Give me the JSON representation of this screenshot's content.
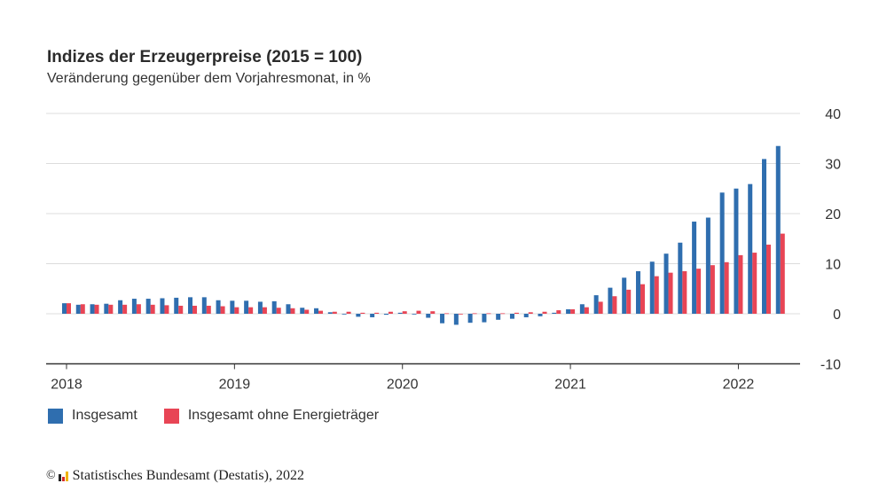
{
  "header": {
    "title": "Indizes der Erzeugerpreise (2015 = 100)",
    "subtitle": "Veränderung gegenüber dem Vorjahresmonat, in %"
  },
  "legend": [
    {
      "label": "Insgesamt",
      "color": "#2f6eaf"
    },
    {
      "label": "Insgesamt ohne Energieträger",
      "color": "#e84555"
    }
  ],
  "source": {
    "copyright_symbol": "©",
    "text": "Statistisches Bundesamt (Destatis), 2022",
    "logo_colors": [
      "#222222",
      "#d62b2b",
      "#f0b400"
    ]
  },
  "chart_data": {
    "type": "bar",
    "title": "Indizes der Erzeugerpreise (2015 = 100)",
    "subtitle": "Veränderung gegenüber dem Vorjahresmonat, in %",
    "xlabel": "",
    "ylabel": "",
    "ylim": [
      -10,
      40
    ],
    "yticks": [
      40,
      30,
      20,
      10,
      0,
      -10
    ],
    "y_axis_side": "right",
    "grid": true,
    "legend_position": "bottom-left",
    "x_start": "2018-01",
    "x_tick_labels": [
      "2018",
      "2019",
      "2020",
      "2021",
      "2022"
    ],
    "categories": [
      "2018-01",
      "2018-02",
      "2018-03",
      "2018-04",
      "2018-05",
      "2018-06",
      "2018-07",
      "2018-08",
      "2018-09",
      "2018-10",
      "2018-11",
      "2018-12",
      "2019-01",
      "2019-02",
      "2019-03",
      "2019-04",
      "2019-05",
      "2019-06",
      "2019-07",
      "2019-08",
      "2019-09",
      "2019-10",
      "2019-11",
      "2019-12",
      "2020-01",
      "2020-02",
      "2020-03",
      "2020-04",
      "2020-05",
      "2020-06",
      "2020-07",
      "2020-08",
      "2020-09",
      "2020-10",
      "2020-11",
      "2020-12",
      "2021-01",
      "2021-02",
      "2021-03",
      "2021-04",
      "2021-05",
      "2021-06",
      "2021-07",
      "2021-08",
      "2021-09",
      "2021-10",
      "2021-11",
      "2021-12",
      "2022-01",
      "2022-02",
      "2022-03",
      "2022-04"
    ],
    "series": [
      {
        "name": "Insgesamt",
        "color": "#2f6eaf",
        "values": [
          2.1,
          1.8,
          1.9,
          2.0,
          2.7,
          3.0,
          3.0,
          3.1,
          3.2,
          3.3,
          3.3,
          2.7,
          2.6,
          2.6,
          2.4,
          2.5,
          1.9,
          1.2,
          1.1,
          0.3,
          -0.1,
          -0.6,
          -0.7,
          -0.2,
          0.2,
          -0.1,
          -0.8,
          -1.9,
          -2.2,
          -1.8,
          -1.7,
          -1.2,
          -1.0,
          -0.7,
          -0.5,
          0.2,
          0.9,
          1.9,
          3.7,
          5.2,
          7.2,
          8.5,
          10.4,
          12.0,
          14.2,
          18.4,
          19.2,
          24.2,
          25.0,
          25.9,
          30.9,
          33.5
        ]
      },
      {
        "name": "Insgesamt ohne Energieträger",
        "color": "#e84555",
        "values": [
          2.1,
          1.9,
          1.8,
          1.8,
          1.8,
          1.9,
          1.8,
          1.7,
          1.6,
          1.6,
          1.6,
          1.5,
          1.3,
          1.3,
          1.3,
          1.2,
          1.1,
          0.8,
          0.6,
          0.4,
          0.4,
          0.2,
          0.2,
          0.4,
          0.5,
          0.6,
          0.5,
          0.1,
          -0.1,
          0.1,
          0.1,
          0.1,
          0.2,
          0.3,
          0.4,
          0.7,
          0.9,
          1.3,
          2.4,
          3.5,
          4.8,
          5.9,
          7.5,
          8.2,
          8.5,
          9.0,
          9.7,
          10.3,
          11.7,
          12.2,
          13.8,
          16.0
        ]
      }
    ]
  }
}
